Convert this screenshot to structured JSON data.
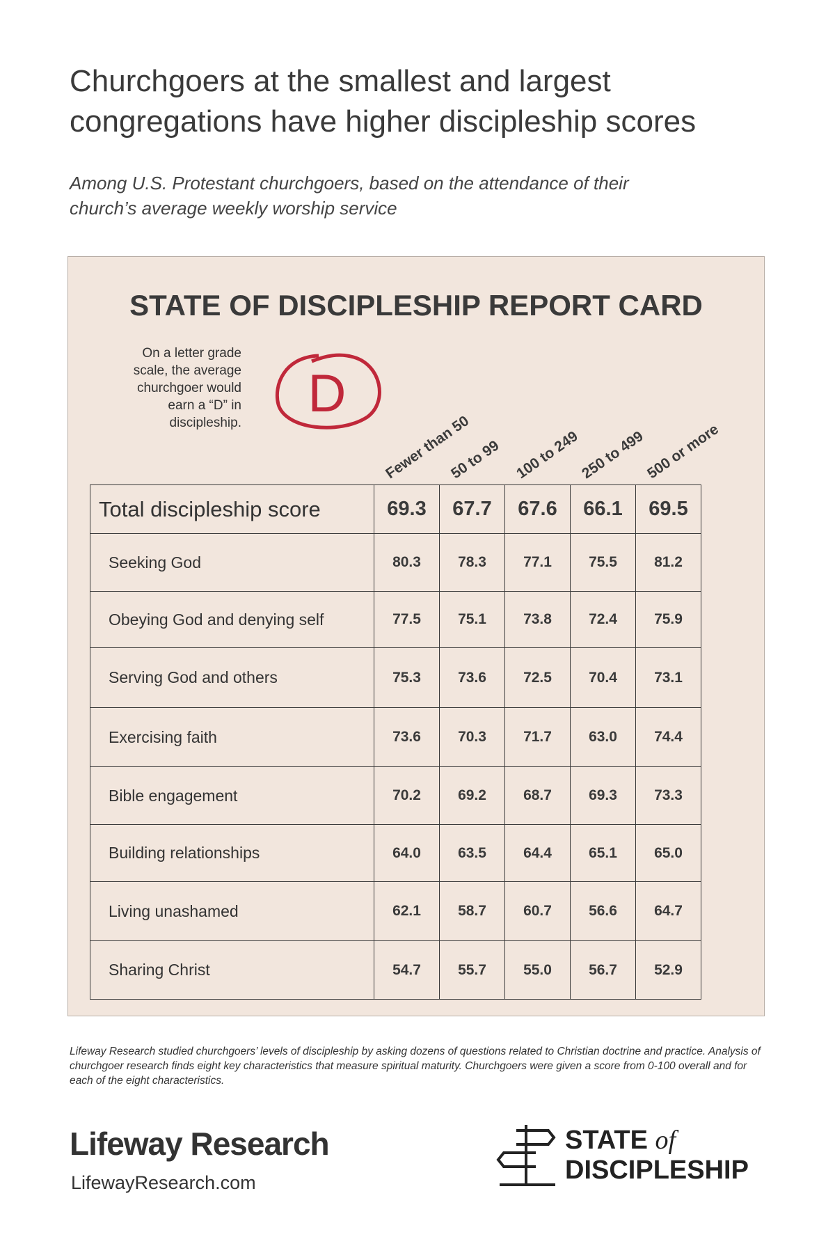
{
  "header": {
    "title": [
      "Churchgoers at the smallest and largest",
      "congregations have higher discipleship scores"
    ],
    "subtitle": [
      "Among U.S. Protestant churchgoers, based on the attendance of their",
      "church’s average weekly worship service"
    ]
  },
  "card": {
    "title": "STATE OF DISCIPLESHIP REPORT CARD",
    "note": [
      "On a letter grade",
      "scale, the average",
      "churchgoer would",
      "earn a “D” in",
      "discipleship."
    ],
    "grade": "D",
    "columns": [
      "Fewer than 50",
      "50 to 99",
      "100 to 249",
      "250 to 499",
      "500 or more"
    ],
    "total": {
      "label": "Total discipleship score",
      "values": [
        "69.3",
        "67.7",
        "67.6",
        "66.1",
        "69.5"
      ]
    },
    "rows": [
      {
        "label": "Seeking God",
        "values": [
          "80.3",
          "78.3",
          "77.1",
          "75.5",
          "81.2"
        ]
      },
      {
        "label": "Obeying God and denying self",
        "values": [
          "77.5",
          "75.1",
          "73.8",
          "72.4",
          "75.9"
        ]
      },
      {
        "label": "Serving God and others",
        "values": [
          "75.3",
          "73.6",
          "72.5",
          "70.4",
          "73.1"
        ]
      },
      {
        "label": "Exercising faith",
        "values": [
          "73.6",
          "70.3",
          "71.7",
          "63.0",
          "74.4"
        ]
      },
      {
        "label": "Bible engagement",
        "values": [
          "70.2",
          "69.2",
          "68.7",
          "69.3",
          "73.3"
        ]
      },
      {
        "label": "Building relationships",
        "values": [
          "64.0",
          "63.5",
          "64.4",
          "65.1",
          "65.0"
        ]
      },
      {
        "label": "Living unashamed",
        "values": [
          "62.1",
          "58.7",
          "60.7",
          "56.6",
          "64.7"
        ]
      },
      {
        "label": "Sharing Christ",
        "values": [
          "54.7",
          "55.7",
          "55.0",
          "56.7",
          "52.9"
        ]
      }
    ]
  },
  "footnote": "Lifeway Research studied churchgoers’ levels of discipleship by asking dozens of questions related to Christian doctrine and practice. Analysis of churchgoer research finds eight key characteristics that measure spiritual maturity. Churchgoers were given a score from 0-100 overall and for each of the eight characteristics.",
  "footer": {
    "brand": "Lifeway Research",
    "url": "LifewayResearch.com",
    "logo": {
      "line1": "STATE",
      "of": "of",
      "line2": "DISCIPLESHIP"
    }
  }
}
